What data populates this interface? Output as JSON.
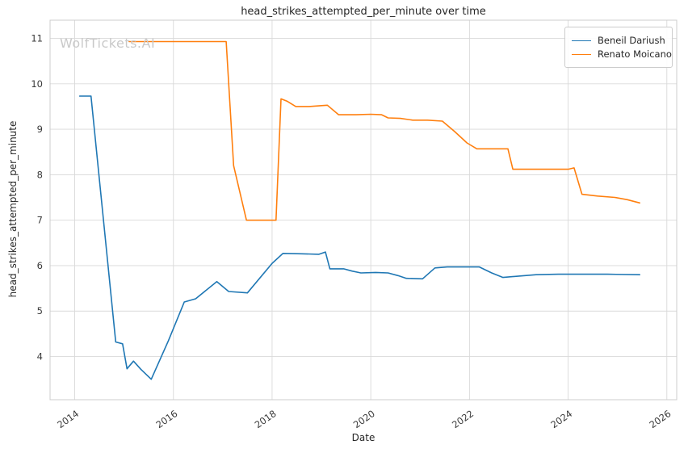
{
  "watermark": "WolfTickets.AI",
  "chart_data": {
    "type": "line",
    "title": "head_strikes_attempted_per_minute over time",
    "xlabel": "Date",
    "ylabel": "head_strikes_attempted_per_minute",
    "xlim": [
      2013.5,
      2026.2
    ],
    "ylim": [
      3.05,
      11.4
    ],
    "xticks": [
      2014,
      2016,
      2018,
      2020,
      2022,
      2024,
      2026
    ],
    "yticks": [
      4,
      5,
      6,
      7,
      8,
      9,
      10,
      11
    ],
    "grid": true,
    "legend_position": "upper right",
    "series": [
      {
        "name": "Beneil Dariush",
        "color": "#1f77b4",
        "points": [
          [
            2014.1,
            9.73
          ],
          [
            2014.33,
            9.73
          ],
          [
            2014.83,
            4.32
          ],
          [
            2014.97,
            4.28
          ],
          [
            2015.06,
            3.73
          ],
          [
            2015.19,
            3.9
          ],
          [
            2015.34,
            3.72
          ],
          [
            2015.55,
            3.5
          ],
          [
            2015.9,
            4.35
          ],
          [
            2016.22,
            5.2
          ],
          [
            2016.45,
            5.27
          ],
          [
            2016.88,
            5.65
          ],
          [
            2017.12,
            5.43
          ],
          [
            2017.5,
            5.4
          ],
          [
            2018.0,
            6.05
          ],
          [
            2018.22,
            6.27
          ],
          [
            2018.6,
            6.26
          ],
          [
            2018.95,
            6.25
          ],
          [
            2019.08,
            6.3
          ],
          [
            2019.17,
            5.93
          ],
          [
            2019.45,
            5.93
          ],
          [
            2019.62,
            5.88
          ],
          [
            2019.8,
            5.84
          ],
          [
            2020.1,
            5.85
          ],
          [
            2020.35,
            5.84
          ],
          [
            2020.55,
            5.78
          ],
          [
            2020.72,
            5.72
          ],
          [
            2021.05,
            5.71
          ],
          [
            2021.3,
            5.95
          ],
          [
            2021.55,
            5.97
          ],
          [
            2021.9,
            5.97
          ],
          [
            2022.2,
            5.97
          ],
          [
            2022.45,
            5.84
          ],
          [
            2022.68,
            5.74
          ],
          [
            2023.0,
            5.77
          ],
          [
            2023.35,
            5.8
          ],
          [
            2023.8,
            5.81
          ],
          [
            2024.3,
            5.81
          ],
          [
            2024.8,
            5.81
          ],
          [
            2025.45,
            5.8
          ]
        ]
      },
      {
        "name": "Renato Moicano",
        "color": "#ff7f0e",
        "points": [
          [
            2015.1,
            10.93
          ],
          [
            2016.2,
            10.93
          ],
          [
            2016.9,
            10.93
          ],
          [
            2017.07,
            10.93
          ],
          [
            2017.22,
            8.2
          ],
          [
            2017.48,
            7.0
          ],
          [
            2017.8,
            7.0
          ],
          [
            2018.08,
            7.0
          ],
          [
            2018.18,
            9.67
          ],
          [
            2018.3,
            9.62
          ],
          [
            2018.48,
            9.5
          ],
          [
            2018.75,
            9.5
          ],
          [
            2019.0,
            9.52
          ],
          [
            2019.12,
            9.53
          ],
          [
            2019.35,
            9.32
          ],
          [
            2019.7,
            9.32
          ],
          [
            2020.0,
            9.33
          ],
          [
            2020.22,
            9.32
          ],
          [
            2020.35,
            9.25
          ],
          [
            2020.6,
            9.24
          ],
          [
            2020.85,
            9.2
          ],
          [
            2021.15,
            9.2
          ],
          [
            2021.45,
            9.18
          ],
          [
            2021.7,
            8.95
          ],
          [
            2021.95,
            8.7
          ],
          [
            2022.15,
            8.57
          ],
          [
            2022.5,
            8.57
          ],
          [
            2022.78,
            8.57
          ],
          [
            2022.88,
            8.12
          ],
          [
            2023.3,
            8.12
          ],
          [
            2023.7,
            8.12
          ],
          [
            2024.0,
            8.12
          ],
          [
            2024.12,
            8.15
          ],
          [
            2024.28,
            7.57
          ],
          [
            2024.6,
            7.53
          ],
          [
            2024.95,
            7.5
          ],
          [
            2025.2,
            7.45
          ],
          [
            2025.45,
            7.38
          ]
        ]
      }
    ]
  }
}
